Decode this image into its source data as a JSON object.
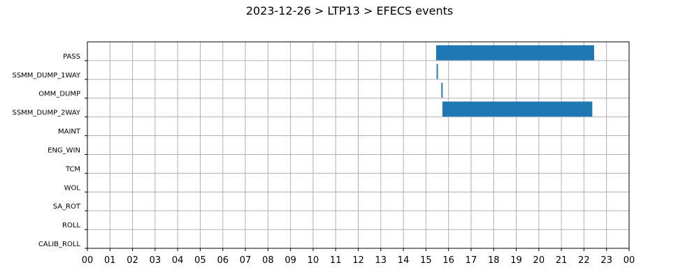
{
  "chart_data": {
    "type": "gantt",
    "title": "2023-12-26 > LTP13 > EFECS events",
    "categories": [
      "PASS",
      "SSMM_DUMP_1WAY",
      "OMM_DUMP",
      "SSMM_DUMP_2WAY",
      "MAINT",
      "ENG_WIN",
      "TCM",
      "WOL",
      "SA_ROT",
      "ROLL",
      "CALIB_ROLL"
    ],
    "x_ticks": [
      "00",
      "01",
      "02",
      "03",
      "04",
      "05",
      "06",
      "07",
      "08",
      "09",
      "10",
      "11",
      "12",
      "13",
      "14",
      "15",
      "16",
      "17",
      "18",
      "19",
      "20",
      "21",
      "22",
      "23",
      "00"
    ],
    "xlim": [
      0,
      24
    ],
    "grid": true,
    "bar_color": "#1f77b4",
    "series": [
      {
        "category": "PASS",
        "start": 15.45,
        "end": 22.45
      },
      {
        "category": "SSMM_DUMP_1WAY",
        "start": 15.47,
        "end": 15.53
      },
      {
        "category": "OMM_DUMP",
        "start": 15.68,
        "end": 15.74
      },
      {
        "category": "SSMM_DUMP_2WAY",
        "start": 15.73,
        "end": 22.37
      }
    ]
  }
}
